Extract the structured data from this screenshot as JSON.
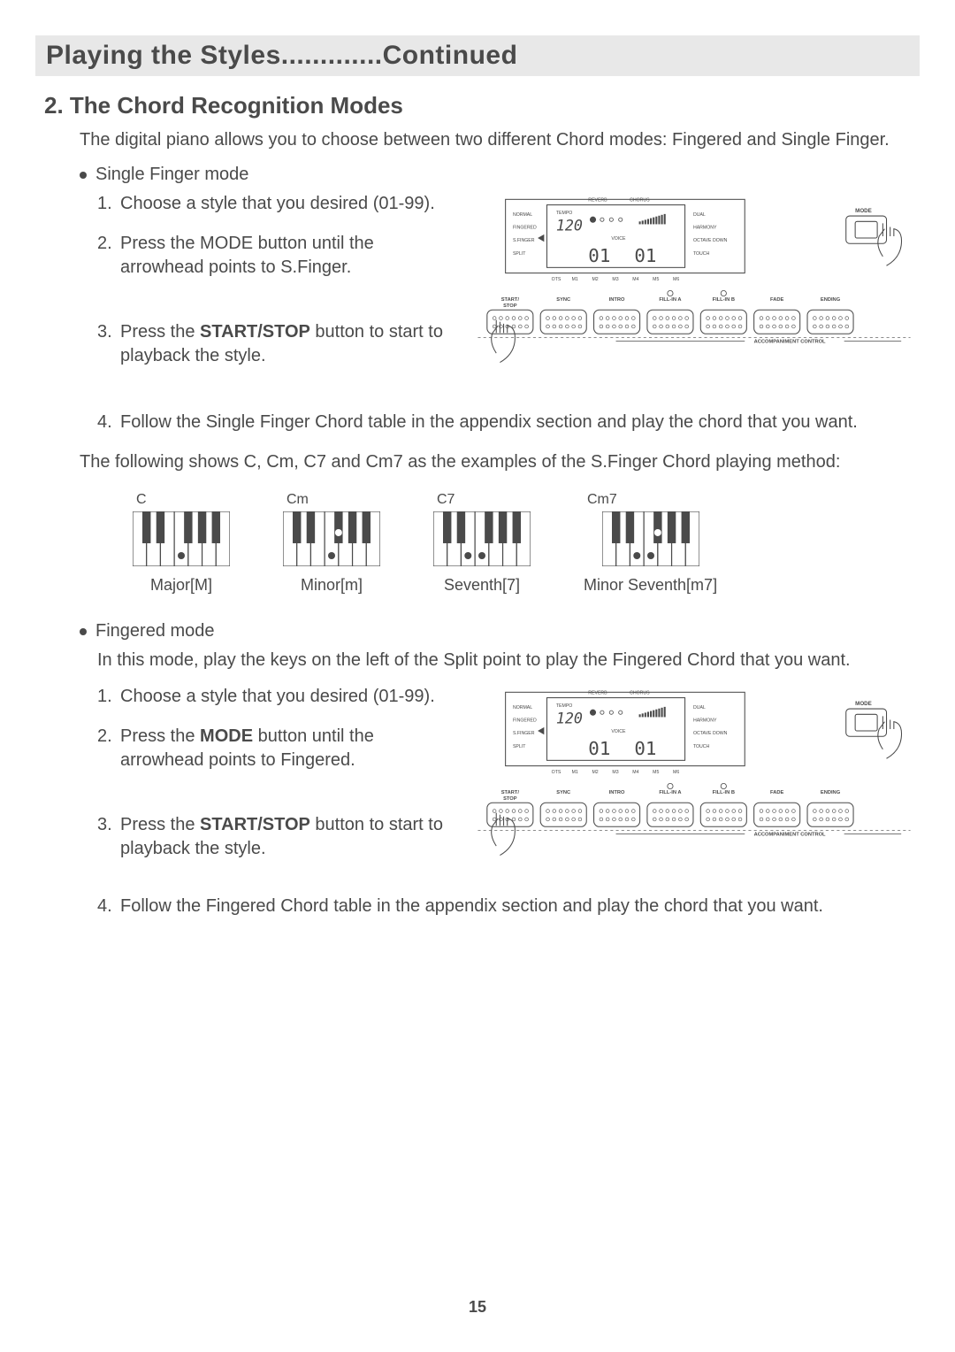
{
  "title": "Playing the Styles.............Continued",
  "section": "2. The Chord Recognition Modes",
  "intro": "The digital piano allows you to choose between two different Chord modes: Fingered and Single Finger.",
  "sfinger": {
    "heading": "Single Finger mode",
    "steps": [
      "Choose a style that you desired (01-99).",
      "Press the MODE button until the arrowhead points to S.Finger.",
      "Press the START/STOP button to start to playback the style.",
      "Follow the Single Finger Chord table in the appendix section and play the chord that you want."
    ],
    "step2_prefix": "Press the MODE button until the arrowhead points to S.Finger.",
    "step3_bold": "START/STOP",
    "step3_prefix": "Press the ",
    "step3_suffix": " button to start to playback the style."
  },
  "examples_intro": "The following shows C, Cm, C7 and Cm7 as the examples of the S.Finger Chord playing method:",
  "chords": [
    {
      "top": "C",
      "bottom": "Major[M]",
      "dots": [
        {
          "white": 3
        }
      ]
    },
    {
      "top": "Cm",
      "bottom": "Minor[m]",
      "dots": [
        {
          "black": 2
        },
        {
          "white": 3
        }
      ]
    },
    {
      "top": "C7",
      "bottom": "Seventh[7]",
      "dots": [
        {
          "white": 2
        },
        {
          "white": 3
        }
      ]
    },
    {
      "top": "Cm7",
      "bottom": "Minor Seventh[m7]",
      "dots": [
        {
          "black": 2
        },
        {
          "white": 2
        },
        {
          "white": 3
        }
      ]
    }
  ],
  "fingered": {
    "heading": "Fingered mode",
    "intro": "In this mode, play the keys on the left of the Split point to play the Fingered Chord that you want.",
    "steps": [
      "Choose a style that you desired (01-99).",
      "Press the MODE button until the arrowhead points to Fingered.",
      "Press the START/STOP button to start to playback the style.",
      "Follow the Fingered Chord table in the appendix section and play the chord that you want."
    ],
    "step2_bold": "MODE",
    "step2_prefix": "Press the ",
    "step2_suffix": " button until the arrowhead points to Fingered.",
    "step3_bold": "START/STOP",
    "step3_prefix": "Press the ",
    "step3_suffix": " button to start to playback the style."
  },
  "panel": {
    "display_labels_left": [
      "NORMAL",
      "FINGERED",
      "S.FINGER",
      "SPLIT"
    ],
    "display_labels_right": [
      "DUAL",
      "HARMONY",
      "OCTAVE DOWN",
      "TOUCH"
    ],
    "display_top": [
      "REVERB",
      "CHORUS"
    ],
    "tempo_label": "TEMPO",
    "tempo_value": "120",
    "voice_label": "VOICE",
    "voice_value_left": "01",
    "voice_value_right": "01",
    "display_bottom": [
      "OTS",
      "M1",
      "M2",
      "M3",
      "M4",
      "M5",
      "M6"
    ],
    "mode_label": "MODE",
    "buttons": [
      "START/\nSTOP",
      "SYNC",
      "INTRO",
      "FILL-IN A",
      "FILL-IN B",
      "FADE",
      "ENDING"
    ],
    "accomp_label": "ACCOMPANIMENT CONTROL"
  },
  "page_number": "15",
  "colors": {
    "text": "#4a4a4a",
    "titlebar_bg": "#e8e8e8",
    "line": "#4a4a4a"
  }
}
